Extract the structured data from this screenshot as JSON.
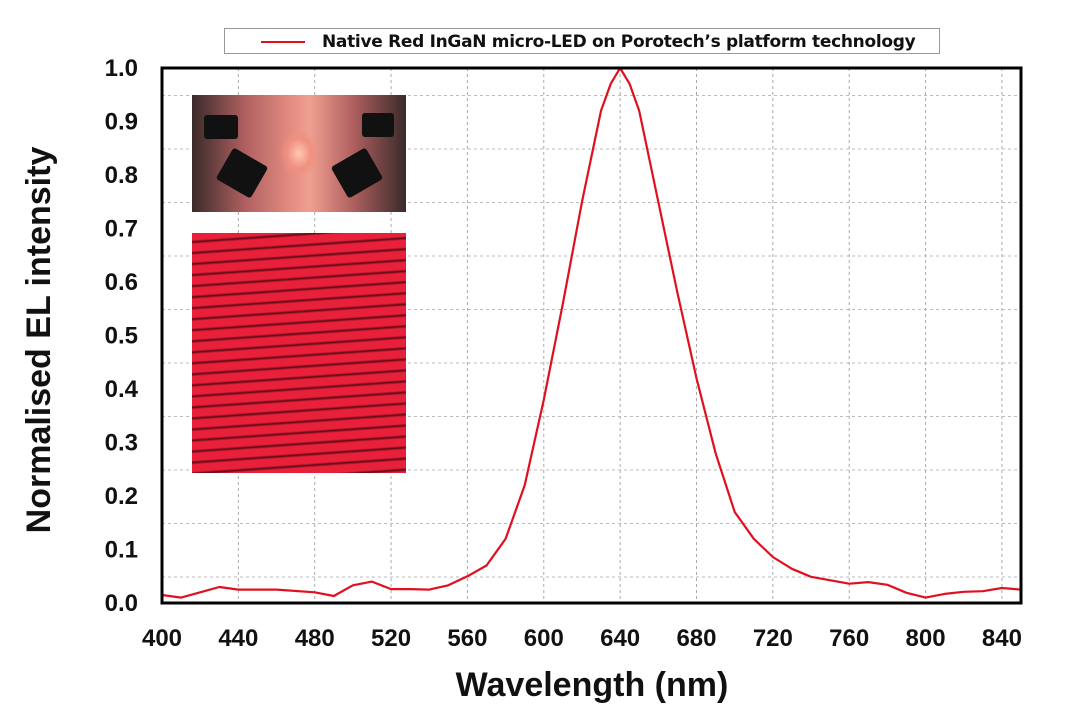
{
  "chart_data": {
    "type": "line",
    "title": "",
    "xlabel": "Wavelength (nm)",
    "ylabel": "Normalised EL intensity",
    "xlim": [
      400,
      850
    ],
    "ylim": [
      0,
      1.0
    ],
    "x_ticks": [
      400,
      440,
      480,
      520,
      560,
      600,
      640,
      680,
      720,
      760,
      800,
      840
    ],
    "x_tick_labels": [
      "400",
      "440",
      "480",
      "520",
      "560",
      "600",
      "640",
      "680",
      "720",
      "760",
      "800",
      "840"
    ],
    "y_ticks": [
      0,
      0.1,
      0.2,
      0.3,
      0.4,
      0.5,
      0.6,
      0.7,
      0.8,
      0.9,
      1.0
    ],
    "y_tick_labels": [
      "0.0",
      "0.1",
      "0.2",
      "0.3",
      "0.4",
      "0.5",
      "0.6",
      "0.7",
      "0.8",
      "0.9",
      "1.0"
    ],
    "grid": true,
    "legend_position": "top",
    "series": [
      {
        "name": "Native Red InGaN micro-LED on Porotech’s platform technology",
        "color": "#e0101e",
        "x": [
          400,
          410,
          420,
          430,
          440,
          460,
          480,
          490,
          500,
          510,
          520,
          530,
          540,
          550,
          560,
          570,
          580,
          590,
          600,
          610,
          620,
          630,
          635,
          640,
          645,
          650,
          660,
          670,
          680,
          690,
          700,
          710,
          720,
          730,
          740,
          760,
          770,
          780,
          790,
          800,
          810,
          820,
          830,
          840,
          850
        ],
        "y": [
          0.015,
          0.01,
          0.02,
          0.03,
          0.025,
          0.025,
          0.02,
          0.013,
          0.033,
          0.04,
          0.026,
          0.026,
          0.025,
          0.033,
          0.05,
          0.07,
          0.12,
          0.22,
          0.38,
          0.56,
          0.75,
          0.92,
          0.97,
          1.0,
          0.97,
          0.92,
          0.75,
          0.58,
          0.42,
          0.28,
          0.17,
          0.12,
          0.086,
          0.064,
          0.049,
          0.036,
          0.039,
          0.034,
          0.019,
          0.01,
          0.017,
          0.021,
          0.022,
          0.028,
          0.025
        ]
      }
    ]
  },
  "legend": {
    "label": "Native Red InGaN micro-LED on Porotech’s platform technology",
    "color": "#e0101e"
  },
  "insets": [
    {
      "name": "probe-station-photo"
    },
    {
      "name": "micro-led-array-photo"
    }
  ]
}
